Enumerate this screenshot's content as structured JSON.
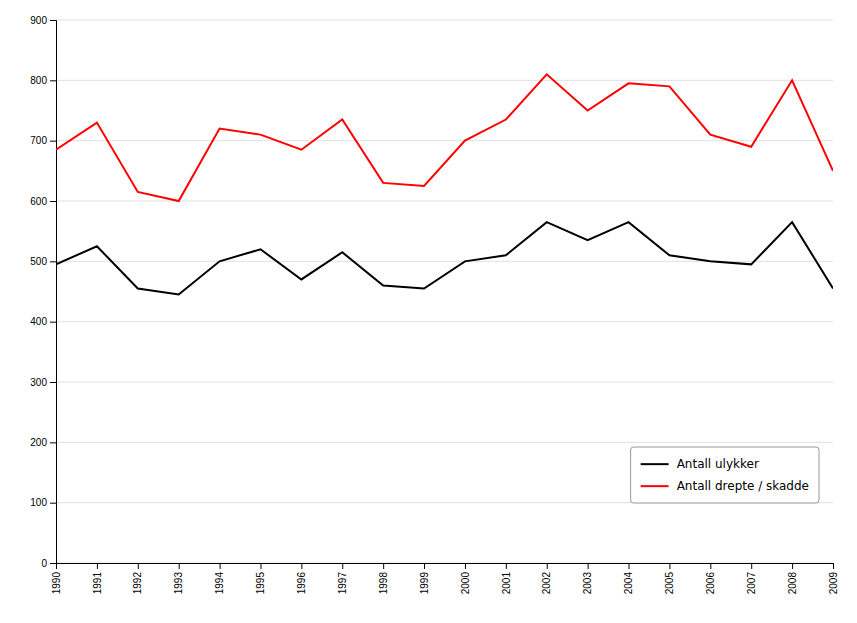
{
  "chart_data": {
    "type": "line",
    "x": [
      1990,
      1991,
      1992,
      1993,
      1994,
      1995,
      1996,
      1997,
      1998,
      1999,
      2000,
      2001,
      2002,
      2003,
      2004,
      2005,
      2006,
      2007,
      2008,
      2009
    ],
    "series": [
      {
        "name": "Antall ulykker",
        "color": "#000000",
        "values": [
          495,
          525,
          455,
          445,
          500,
          520,
          470,
          515,
          460,
          455,
          500,
          510,
          565,
          535,
          565,
          510,
          500,
          495,
          565,
          455
        ]
      },
      {
        "name": "Antall drepte / skadde",
        "color": "#ff0000",
        "values": [
          685,
          730,
          615,
          600,
          720,
          710,
          685,
          735,
          630,
          625,
          700,
          735,
          810,
          750,
          795,
          790,
          710,
          690,
          800,
          650
        ]
      }
    ],
    "xlim": [
      1990,
      2009
    ],
    "xticks": [
      1990,
      1991,
      1992,
      1993,
      1994,
      1995,
      1996,
      1997,
      1998,
      1999,
      2000,
      2001,
      2002,
      2003,
      2004,
      2005,
      2006,
      2007,
      2008,
      2009
    ],
    "ylim": [
      0,
      900
    ],
    "yticks": [
      0,
      100,
      200,
      300,
      400,
      500,
      600,
      700,
      800,
      900
    ],
    "grid": true,
    "legend": "lower right"
  }
}
